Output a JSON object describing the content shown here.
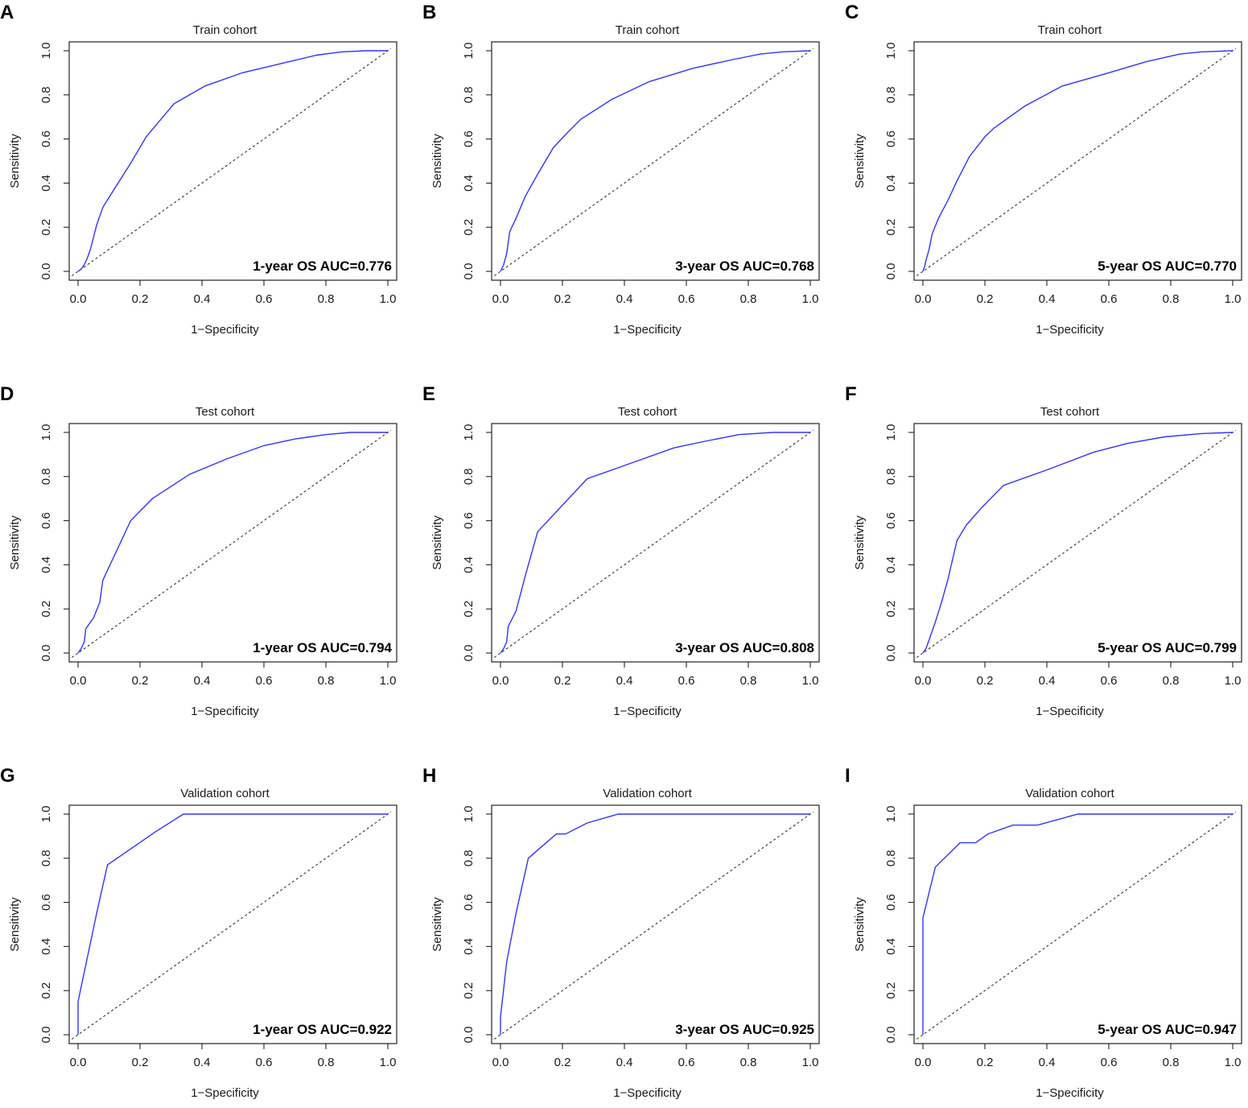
{
  "colors": {
    "roc_line": "#3333ff",
    "reference_line": "#222222"
  },
  "chart_data": [
    {
      "type": "line",
      "panel": "A",
      "title": "Train cohort",
      "xlabel": "1−Specificity",
      "ylabel": "Sensitivity",
      "xlim": [
        0,
        1
      ],
      "ylim": [
        0,
        1
      ],
      "xticks": [
        "0.0",
        "0.2",
        "0.4",
        "0.6",
        "0.8",
        "1.0"
      ],
      "yticks": [
        "0.0",
        "0.2",
        "0.4",
        "0.6",
        "0.8",
        "1.0"
      ],
      "annotation": "1-year OS AUC=0.776",
      "reference_line": "diagonal dashed",
      "series": [
        {
          "name": "ROC",
          "x": [
            0,
            0.01,
            0.02,
            0.03,
            0.04,
            0.06,
            0.08,
            0.12,
            0.17,
            0.22,
            0.31,
            0.41,
            0.53,
            0.65,
            0.77,
            0.85,
            0.93,
            1.0
          ],
          "y": [
            0,
            0.01,
            0.03,
            0.06,
            0.1,
            0.21,
            0.29,
            0.38,
            0.49,
            0.61,
            0.76,
            0.84,
            0.9,
            0.94,
            0.98,
            0.995,
            1.0,
            1.0
          ]
        }
      ]
    },
    {
      "type": "line",
      "panel": "B",
      "title": "Train cohort",
      "xlabel": "1−Specificity",
      "ylabel": "Sensitivity",
      "xlim": [
        0,
        1
      ],
      "ylim": [
        0,
        1
      ],
      "xticks": [
        "0.0",
        "0.2",
        "0.4",
        "0.6",
        "0.8",
        "1.0"
      ],
      "yticks": [
        "0.0",
        "0.2",
        "0.4",
        "0.6",
        "0.8",
        "1.0"
      ],
      "annotation": "3-year OS AUC=0.768",
      "reference_line": "diagonal dashed",
      "series": [
        {
          "name": "ROC",
          "x": [
            0,
            0.01,
            0.02,
            0.03,
            0.05,
            0.08,
            0.12,
            0.17,
            0.21,
            0.26,
            0.36,
            0.48,
            0.62,
            0.75,
            0.84,
            0.91,
            1.0
          ],
          "y": [
            0,
            0.03,
            0.08,
            0.18,
            0.24,
            0.34,
            0.44,
            0.56,
            0.62,
            0.69,
            0.78,
            0.86,
            0.92,
            0.96,
            0.985,
            0.995,
            1.0
          ]
        }
      ]
    },
    {
      "type": "line",
      "panel": "C",
      "title": "Train cohort",
      "xlabel": "1−Specificity",
      "ylabel": "Sensitivity",
      "xlim": [
        0,
        1
      ],
      "ylim": [
        0,
        1
      ],
      "xticks": [
        "0.0",
        "0.2",
        "0.4",
        "0.6",
        "0.8",
        "1.0"
      ],
      "yticks": [
        "0.0",
        "0.2",
        "0.4",
        "0.6",
        "0.8",
        "1.0"
      ],
      "annotation": "5-year OS AUC=0.770",
      "reference_line": "diagonal dashed",
      "series": [
        {
          "name": "ROC",
          "x": [
            0,
            0.005,
            0.01,
            0.02,
            0.03,
            0.05,
            0.08,
            0.11,
            0.15,
            0.2,
            0.23,
            0.33,
            0.45,
            0.6,
            0.72,
            0.83,
            0.9,
            1.0
          ],
          "y": [
            0,
            0.02,
            0.05,
            0.1,
            0.17,
            0.24,
            0.32,
            0.41,
            0.52,
            0.61,
            0.65,
            0.75,
            0.84,
            0.9,
            0.95,
            0.985,
            0.995,
            1.0
          ]
        }
      ]
    },
    {
      "type": "line",
      "panel": "D",
      "title": "Test cohort",
      "xlabel": "1−Specificity",
      "ylabel": "Sensitivity",
      "xlim": [
        0,
        1
      ],
      "ylim": [
        0,
        1
      ],
      "xticks": [
        "0.0",
        "0.2",
        "0.4",
        "0.6",
        "0.8",
        "1.0"
      ],
      "yticks": [
        "0.0",
        "0.2",
        "0.4",
        "0.6",
        "0.8",
        "1.0"
      ],
      "annotation": "1-year OS AUC=0.794",
      "reference_line": "diagonal dashed",
      "series": [
        {
          "name": "ROC",
          "x": [
            0,
            0.01,
            0.02,
            0.025,
            0.05,
            0.07,
            0.08,
            0.12,
            0.17,
            0.24,
            0.36,
            0.48,
            0.6,
            0.7,
            0.8,
            0.88,
            1.0
          ],
          "y": [
            0,
            0.02,
            0.05,
            0.11,
            0.16,
            0.23,
            0.33,
            0.45,
            0.6,
            0.7,
            0.81,
            0.88,
            0.94,
            0.97,
            0.99,
            1.0,
            1.0
          ]
        }
      ]
    },
    {
      "type": "line",
      "panel": "E",
      "title": "Test cohort",
      "xlabel": "1−Specificity",
      "ylabel": "Sensitivity",
      "xlim": [
        0,
        1
      ],
      "ylim": [
        0,
        1
      ],
      "xticks": [
        "0.0",
        "0.2",
        "0.4",
        "0.6",
        "0.8",
        "1.0"
      ],
      "yticks": [
        "0.0",
        "0.2",
        "0.4",
        "0.6",
        "0.8",
        "1.0"
      ],
      "annotation": "3-year OS AUC=0.808",
      "reference_line": "diagonal dashed",
      "series": [
        {
          "name": "ROC",
          "x": [
            0,
            0.01,
            0.02,
            0.025,
            0.05,
            0.08,
            0.12,
            0.2,
            0.28,
            0.42,
            0.56,
            0.66,
            0.77,
            0.88,
            1.0
          ],
          "y": [
            0,
            0.02,
            0.05,
            0.12,
            0.19,
            0.35,
            0.55,
            0.67,
            0.79,
            0.86,
            0.93,
            0.96,
            0.99,
            1.0,
            1.0
          ]
        }
      ]
    },
    {
      "type": "line",
      "panel": "F",
      "title": "Test cohort",
      "xlabel": "1−Specificity",
      "ylabel": "Sensitivity",
      "xlim": [
        0,
        1
      ],
      "ylim": [
        0,
        1
      ],
      "xticks": [
        "0.0",
        "0.2",
        "0.4",
        "0.6",
        "0.8",
        "1.0"
      ],
      "yticks": [
        "0.0",
        "0.2",
        "0.4",
        "0.6",
        "0.8",
        "1.0"
      ],
      "annotation": "5-year OS AUC=0.799",
      "reference_line": "diagonal dashed",
      "series": [
        {
          "name": "ROC",
          "x": [
            0,
            0.01,
            0.02,
            0.04,
            0.06,
            0.08,
            0.11,
            0.14,
            0.19,
            0.26,
            0.4,
            0.55,
            0.66,
            0.78,
            0.9,
            1.0
          ],
          "y": [
            0,
            0.02,
            0.06,
            0.14,
            0.23,
            0.33,
            0.51,
            0.58,
            0.66,
            0.76,
            0.83,
            0.91,
            0.95,
            0.98,
            0.995,
            1.0
          ]
        }
      ]
    },
    {
      "type": "line",
      "panel": "G",
      "title": "Validation cohort",
      "xlabel": "1−Specificity",
      "ylabel": "Sensitivity",
      "xlim": [
        0,
        1
      ],
      "ylim": [
        0,
        1
      ],
      "xticks": [
        "0.0",
        "0.2",
        "0.4",
        "0.6",
        "0.8",
        "1.0"
      ],
      "yticks": [
        "0.0",
        "0.2",
        "0.4",
        "0.6",
        "0.8",
        "1.0"
      ],
      "annotation": "1-year OS AUC=0.922",
      "reference_line": "diagonal dashed",
      "series": [
        {
          "name": "ROC",
          "x": [
            0,
            0,
            0.06,
            0.095,
            0.25,
            0.34,
            0.6,
            1.0
          ],
          "y": [
            0,
            0.15,
            0.55,
            0.77,
            0.92,
            1.0,
            1.0,
            1.0
          ]
        }
      ]
    },
    {
      "type": "line",
      "panel": "H",
      "title": "Validation cohort",
      "xlabel": "1−Specificity",
      "ylabel": "Sensitivity",
      "xlim": [
        0,
        1
      ],
      "ylim": [
        0,
        1
      ],
      "xticks": [
        "0.0",
        "0.2",
        "0.4",
        "0.6",
        "0.8",
        "1.0"
      ],
      "yticks": [
        "0.0",
        "0.2",
        "0.4",
        "0.6",
        "0.8",
        "1.0"
      ],
      "annotation": "3-year OS AUC=0.925",
      "reference_line": "diagonal dashed",
      "series": [
        {
          "name": "ROC",
          "x": [
            0,
            0,
            0.02,
            0.05,
            0.09,
            0.18,
            0.21,
            0.28,
            0.38,
            0.6,
            1.0
          ],
          "y": [
            0,
            0.08,
            0.33,
            0.55,
            0.8,
            0.91,
            0.91,
            0.96,
            1.0,
            1.0,
            1.0
          ]
        }
      ]
    },
    {
      "type": "line",
      "panel": "I",
      "title": "Validation cohort",
      "xlabel": "1−Specificity",
      "ylabel": "Sensitivity",
      "xlim": [
        0,
        1
      ],
      "ylim": [
        0,
        1
      ],
      "xticks": [
        "0.0",
        "0.2",
        "0.4",
        "0.6",
        "0.8",
        "1.0"
      ],
      "yticks": [
        "0.0",
        "0.2",
        "0.4",
        "0.6",
        "0.8",
        "1.0"
      ],
      "annotation": "5-year OS AUC=0.947",
      "reference_line": "diagonal dashed",
      "series": [
        {
          "name": "ROC",
          "x": [
            0,
            0,
            0.04,
            0.12,
            0.17,
            0.21,
            0.29,
            0.37,
            0.5,
            1.0
          ],
          "y": [
            0,
            0.53,
            0.76,
            0.87,
            0.87,
            0.91,
            0.95,
            0.95,
            1.0,
            1.0
          ]
        }
      ]
    }
  ]
}
